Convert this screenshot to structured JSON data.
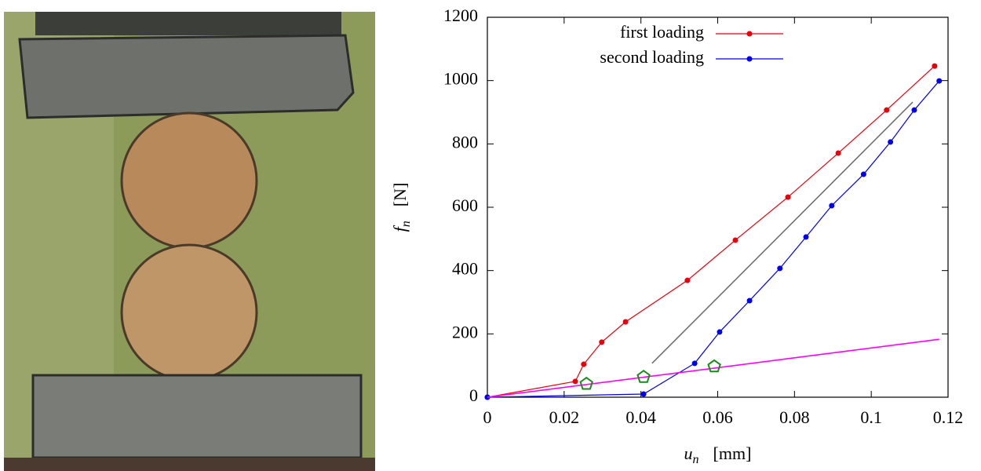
{
  "chart_data": {
    "type": "line",
    "xlabel": {
      "symbol": "u",
      "subscript": "n",
      "unit": "[mm]"
    },
    "ylabel": {
      "symbol": "f",
      "subscript": "n",
      "unit": "[N]"
    },
    "xlim": [
      0,
      0.12
    ],
    "xticks": [
      0,
      0.02,
      0.04,
      0.06,
      0.08,
      0.1,
      0.12
    ],
    "ylim": [
      0,
      1200
    ],
    "yticks": [
      0,
      200,
      400,
      600,
      800,
      1000,
      1200
    ],
    "legend": "top",
    "series": [
      {
        "name": "first loading",
        "color": "#e8000b",
        "marker": "circle",
        "line": true,
        "x": [
          0,
          0.0229,
          0.0251,
          0.0298,
          0.036,
          0.0521,
          0.0646,
          0.0783,
          0.0914,
          0.104,
          0.1165
        ],
        "values": [
          0,
          50,
          104,
          174,
          238,
          369,
          496,
          632,
          771,
          907,
          1046
        ]
      },
      {
        "name": "second loading",
        "color": "#0000ee",
        "marker": "circle",
        "line": true,
        "x": [
          0,
          0.0407,
          0.054,
          0.0605,
          0.0683,
          0.0762,
          0.083,
          0.0897,
          0.098,
          0.105,
          0.1112,
          0.1177
        ],
        "values": [
          0,
          10,
          107,
          206,
          305,
          407,
          506,
          605,
          704,
          806,
          907,
          999
        ]
      },
      {
        "color": "#707070",
        "marker": "none",
        "line": true,
        "x": [
          0.0429,
          0.1108
        ],
        "values": [
          107,
          932
        ]
      },
      {
        "color": "#ff00ff",
        "marker": "none",
        "line": true,
        "x": [
          0,
          0.1177
        ],
        "values": [
          0,
          183
        ]
      },
      {
        "color": "#1a8a1a",
        "marker": "pentagon",
        "line": false,
        "x": [
          0.0258,
          0.0407,
          0.0591
        ],
        "values": [
          42,
          64,
          97
        ]
      }
    ]
  }
}
